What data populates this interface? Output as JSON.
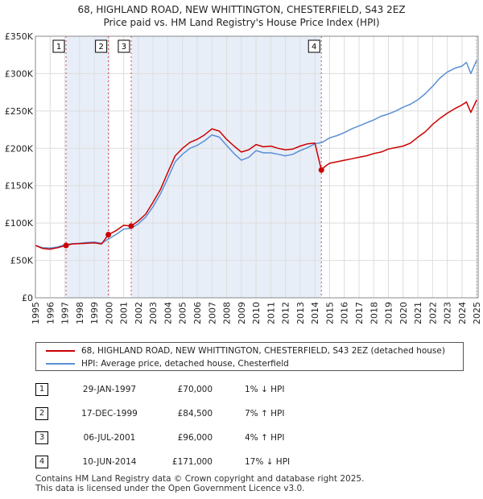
{
  "header": {
    "title_line1": "68, HIGHLAND ROAD, NEW WHITTINGTON, CHESTERFIELD, S43 2EZ",
    "title_line2": "Price paid vs. HM Land Registry's House Price Index (HPI)"
  },
  "legend": {
    "series1": "68, HIGHLAND ROAD, NEW WHITTINGTON, CHESTERFIELD, S43 2EZ (detached house)",
    "series2": "HPI: Average price, detached house, Chesterfield"
  },
  "sales": [
    {
      "num": "1",
      "date": "29-JAN-1997",
      "price": "£70,000",
      "hpi": "1% ↓ HPI"
    },
    {
      "num": "2",
      "date": "17-DEC-1999",
      "price": "£84,500",
      "hpi": "7% ↑ HPI"
    },
    {
      "num": "3",
      "date": "06-JUL-2001",
      "price": "£96,000",
      "hpi": "4% ↑ HPI"
    },
    {
      "num": "4",
      "date": "10-JUN-2014",
      "price": "£171,000",
      "hpi": "17% ↓ HPI"
    }
  ],
  "footer": {
    "line1": "Contains HM Land Registry data © Crown copyright and database right 2025.",
    "line2": "This data is licensed under the Open Government Licence v3.0."
  },
  "colors": {
    "price_line": "#cc0000",
    "hpi_line": "#5b8fd6",
    "shade": "#e8eef8",
    "grid": "#dddddd",
    "vline_current": "#cc0000",
    "vline_sale": "#aaaaaa"
  },
  "chart_data": {
    "type": "line",
    "title": "Price paid vs. HM Land Registry's House Price Index (HPI)",
    "xlabel": "",
    "ylabel": "",
    "xlim": [
      1995,
      2025.1
    ],
    "ylim": [
      0,
      350000
    ],
    "y_ticks": [
      0,
      50000,
      100000,
      150000,
      200000,
      250000,
      300000,
      350000
    ],
    "y_tick_labels": [
      "£0",
      "£50K",
      "£100K",
      "£150K",
      "£200K",
      "£250K",
      "£300K",
      "£350K"
    ],
    "x_ticks": [
      1995,
      1996,
      1997,
      1998,
      1999,
      2000,
      2001,
      2002,
      2003,
      2004,
      2005,
      2006,
      2007,
      2008,
      2009,
      2010,
      2011,
      2012,
      2013,
      2014,
      2015,
      2016,
      2017,
      2018,
      2019,
      2020,
      2021,
      2022,
      2023,
      2024,
      2025
    ],
    "x_tick_labels": [
      "1995",
      "1996",
      "1997",
      "1998",
      "1999",
      "2000",
      "2001",
      "2002",
      "2003",
      "2004",
      "2005",
      "2006",
      "2007",
      "2008",
      "2009",
      "2010",
      "2011",
      "2012",
      "2013",
      "2014",
      "2015",
      "2016",
      "2017",
      "2018",
      "2019",
      "2020",
      "2021",
      "2022",
      "2023",
      "2024",
      "2025"
    ],
    "shaded_ranges": [
      [
        1997.08,
        1999.96
      ],
      [
        2001.51,
        2014.44
      ]
    ],
    "sale_markers": [
      {
        "label": "1",
        "x": 1997.08,
        "y": 70000
      },
      {
        "label": "2",
        "x": 1999.96,
        "y": 84500
      },
      {
        "label": "3",
        "x": 2001.51,
        "y": 96000
      },
      {
        "label": "4",
        "x": 2014.44,
        "y": 171000
      }
    ],
    "series": [
      {
        "name": "68, HIGHLAND ROAD, NEW WHITTINGTON, CHESTERFIELD, S43 2EZ (detached house)",
        "x": [
          1995,
          1995.5,
          1996,
          1996.5,
          1997.08,
          1997.5,
          1998,
          1998.5,
          1999,
          1999.5,
          1999.96,
          2000.5,
          2001,
          2001.51,
          2002,
          2002.5,
          2003,
          2003.5,
          2004,
          2004.5,
          2005,
          2005.5,
          2006,
          2006.5,
          2007,
          2007.5,
          2008,
          2008.5,
          2009,
          2009.5,
          2010,
          2010.5,
          2011,
          2011.5,
          2012,
          2012.5,
          2013,
          2013.5,
          2014,
          2014.44,
          2014.7,
          2015,
          2015.5,
          2016,
          2016.5,
          2017,
          2017.5,
          2018,
          2018.5,
          2019,
          2019.5,
          2020,
          2020.5,
          2021,
          2021.5,
          2022,
          2022.5,
          2023,
          2023.5,
          2024,
          2024.3,
          2024.6,
          2025
        ],
        "values": [
          70000,
          66000,
          65000,
          67000,
          70000,
          72000,
          72500,
          73000,
          73500,
          72000,
          84500,
          90000,
          97000,
          96000,
          103000,
          112000,
          128000,
          145000,
          168000,
          190000,
          200000,
          208000,
          212000,
          218000,
          226000,
          223000,
          212000,
          203000,
          195000,
          198000,
          205000,
          202000,
          203000,
          200000,
          198000,
          199000,
          203000,
          206000,
          207000,
          171000,
          176000,
          180000,
          182000,
          184000,
          186000,
          188000,
          190000,
          193000,
          195000,
          199000,
          201000,
          203000,
          207000,
          215000,
          222000,
          232000,
          240000,
          247000,
          253000,
          258000,
          262000,
          248000,
          265000
        ]
      },
      {
        "name": "HPI: Average price, detached house, Chesterfield",
        "x": [
          1995,
          1995.5,
          1996,
          1996.5,
          1997,
          1997.5,
          1998,
          1998.5,
          1999,
          1999.5,
          2000,
          2000.5,
          2001,
          2001.5,
          2002,
          2002.5,
          2003,
          2003.5,
          2004,
          2004.5,
          2005,
          2005.5,
          2006,
          2006.5,
          2007,
          2007.5,
          2008,
          2008.5,
          2009,
          2009.5,
          2010,
          2010.5,
          2011,
          2011.5,
          2012,
          2012.5,
          2013,
          2013.5,
          2014,
          2014.5,
          2015,
          2015.5,
          2016,
          2016.5,
          2017,
          2017.5,
          2018,
          2018.5,
          2019,
          2019.5,
          2020,
          2020.5,
          2021,
          2021.5,
          2022,
          2022.5,
          2023,
          2023.5,
          2024,
          2024.3,
          2024.6,
          2025
        ],
        "values": [
          70000,
          67000,
          66500,
          68000,
          71000,
          72500,
          73000,
          74000,
          74500,
          73000,
          79000,
          85000,
          92000,
          93000,
          99000,
          108000,
          122000,
          139000,
          160000,
          182000,
          192000,
          200000,
          204000,
          210000,
          218000,
          215000,
          204000,
          193000,
          184000,
          188000,
          197000,
          194000,
          194000,
          192000,
          190000,
          192000,
          197000,
          201000,
          206000,
          208000,
          214000,
          217000,
          221000,
          226000,
          230000,
          234000,
          238000,
          243000,
          246000,
          250000,
          255000,
          259000,
          265000,
          273000,
          283000,
          294000,
          302000,
          307000,
          310000,
          315000,
          300000,
          318000
        ]
      }
    ]
  }
}
